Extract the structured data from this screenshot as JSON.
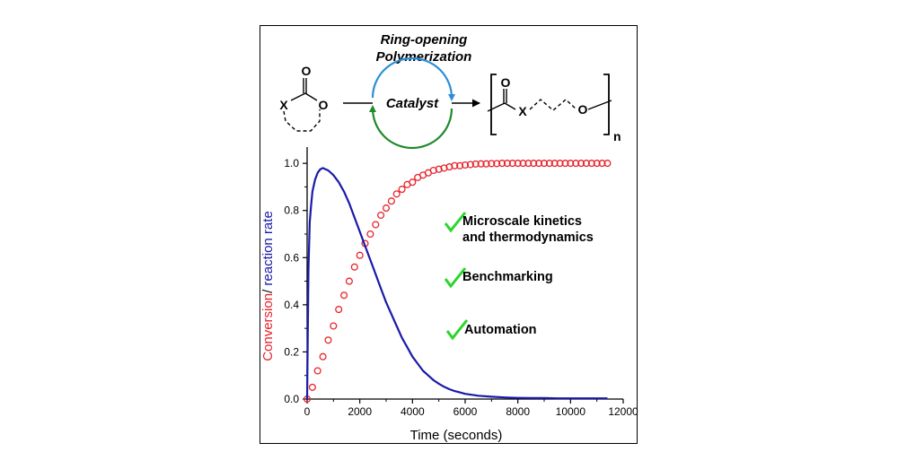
{
  "scheme": {
    "title_line1": "Ring-opening",
    "title_line2": "Polymerization",
    "catalyst_label": "Catalyst",
    "reactant_atom_x": "X",
    "reactant_atom_o_carbonyl": "O",
    "reactant_atom_o_ring": "O",
    "product_atom_o_carbonyl": "O",
    "product_atom_x": "X",
    "product_atom_o_ether": "O",
    "repeat_subscript": "n",
    "colors": {
      "cycle_top": "#2b8fd6",
      "cycle_bottom": "#1f8a2a"
    }
  },
  "annotations": {
    "items": [
      {
        "lines": [
          "Microscale kinetics",
          "and thermodynamics"
        ],
        "check_icon": "check-icon"
      },
      {
        "lines": [
          "Benchmarking"
        ],
        "check_icon": "check-icon"
      },
      {
        "lines": [
          "Automation"
        ],
        "check_icon": "check-icon"
      }
    ],
    "check_color": "#2bd62b"
  },
  "chart_data": {
    "type": "scatter",
    "xlabel": "Time (seconds)",
    "ylabel_part1": "Conversion",
    "ylabel_sep": "/ ",
    "ylabel_part2": "reaction rate",
    "xlim": [
      0,
      12000
    ],
    "ylim": [
      0,
      1.05
    ],
    "xticks": [
      0,
      2000,
      4000,
      6000,
      8000,
      10000,
      12000
    ],
    "xtick_labels": [
      "0",
      "2000",
      "4000",
      "6000",
      "8000",
      "10000",
      "12000"
    ],
    "yticks": [
      0,
      0.2,
      0.4,
      0.6,
      0.8,
      1.0
    ],
    "ytick_labels": [
      "0.0",
      "0.2",
      "0.4",
      "0.6",
      "0.8",
      "1.0"
    ],
    "grid": false,
    "series": [
      {
        "style": "markers",
        "color": "#e8232a",
        "x": [
          0,
          200,
          400,
          600,
          800,
          1000,
          1200,
          1400,
          1600,
          1800,
          2000,
          2200,
          2400,
          2600,
          2800,
          3000,
          3200,
          3400,
          3600,
          3800,
          4000,
          4200,
          4400,
          4600,
          4800,
          5000,
          5200,
          5400,
          5600,
          5800,
          6000,
          6200,
          6400,
          6600,
          6800,
          7000,
          7200,
          7400,
          7600,
          7800,
          8000,
          8200,
          8400,
          8600,
          8800,
          9000,
          9200,
          9400,
          9600,
          9800,
          10000,
          10200,
          10400,
          10600,
          10800,
          11000,
          11200,
          11400
        ],
        "y": [
          0.0,
          0.05,
          0.12,
          0.18,
          0.25,
          0.31,
          0.38,
          0.44,
          0.5,
          0.56,
          0.61,
          0.66,
          0.7,
          0.74,
          0.78,
          0.81,
          0.84,
          0.87,
          0.89,
          0.91,
          0.92,
          0.94,
          0.95,
          0.96,
          0.97,
          0.975,
          0.98,
          0.985,
          0.99,
          0.99,
          0.993,
          0.995,
          0.997,
          0.998,
          0.998,
          0.999,
          0.999,
          1.0,
          1.0,
          1.0,
          1.0,
          1.0,
          1.0,
          1.0,
          1.0,
          1.0,
          1.0,
          1.0,
          1.0,
          1.0,
          1.0,
          1.0,
          1.0,
          1.0,
          1.0,
          1.0,
          1.0,
          1.0
        ]
      },
      {
        "style": "line",
        "color": "#1a1aa8",
        "x": [
          0,
          50,
          100,
          150,
          200,
          300,
          400,
          500,
          600,
          700,
          800,
          1000,
          1200,
          1400,
          1600,
          1800,
          2000,
          2200,
          2400,
          2600,
          2800,
          3000,
          3200,
          3400,
          3600,
          3800,
          4000,
          4200,
          4400,
          4600,
          4800,
          5000,
          5200,
          5400,
          5600,
          5800,
          6000,
          6500,
          7000,
          7500,
          8000,
          8500,
          9000,
          9500,
          10000,
          10500,
          11000,
          11400
        ],
        "y": [
          0.0,
          0.55,
          0.75,
          0.82,
          0.88,
          0.93,
          0.96,
          0.975,
          0.98,
          0.975,
          0.97,
          0.95,
          0.92,
          0.88,
          0.83,
          0.77,
          0.71,
          0.65,
          0.59,
          0.53,
          0.47,
          0.41,
          0.36,
          0.31,
          0.26,
          0.22,
          0.18,
          0.15,
          0.12,
          0.1,
          0.08,
          0.065,
          0.052,
          0.042,
          0.034,
          0.028,
          0.022,
          0.014,
          0.01,
          0.007,
          0.005,
          0.004,
          0.004,
          0.003,
          0.003,
          0.003,
          0.003,
          0.003
        ]
      }
    ]
  }
}
